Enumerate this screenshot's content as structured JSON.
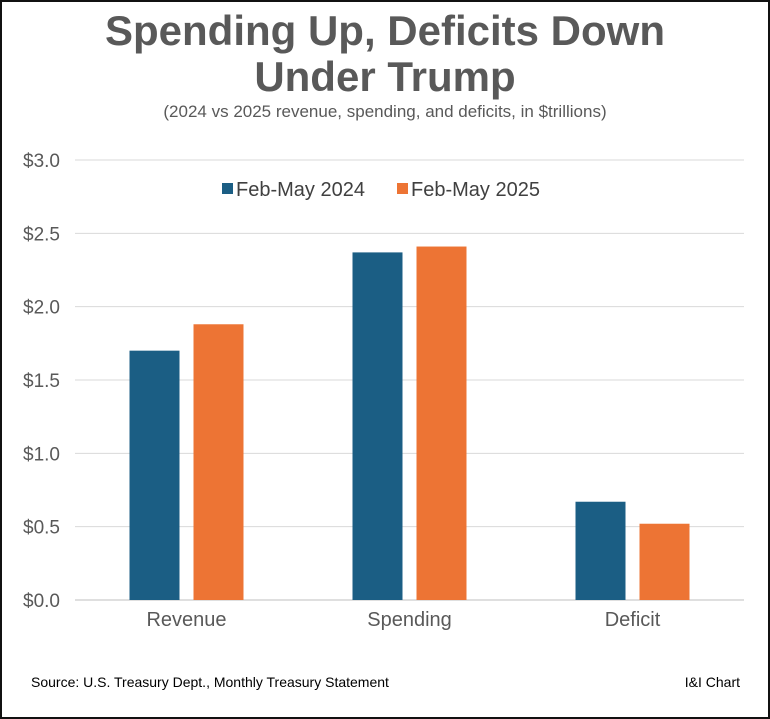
{
  "chart_data": {
    "type": "bar",
    "title": "Spending Up, Deficits Down Under Trump",
    "subtitle": "(2024 vs 2025 revenue, spending, and deficits, in $trillions)",
    "categories": [
      "Revenue",
      "Spending",
      "Deficit"
    ],
    "series": [
      {
        "name": "Feb-May 2024",
        "color": "#1B5E84",
        "values": [
          1.7,
          2.37,
          0.67
        ]
      },
      {
        "name": "Feb-May 2025",
        "color": "#ED7434",
        "values": [
          1.88,
          2.41,
          0.52
        ]
      }
    ],
    "ylim": [
      0,
      3.0
    ],
    "yticks": [
      "$0.0",
      "$0.5",
      "$1.0",
      "$1.5",
      "$2.0",
      "$2.5",
      "$3.0"
    ],
    "grid": true,
    "legend_position": "top-center",
    "source": "Source: U.S. Treasury Dept., Monthly  Treasury Statement",
    "credit": "I&I Chart"
  }
}
